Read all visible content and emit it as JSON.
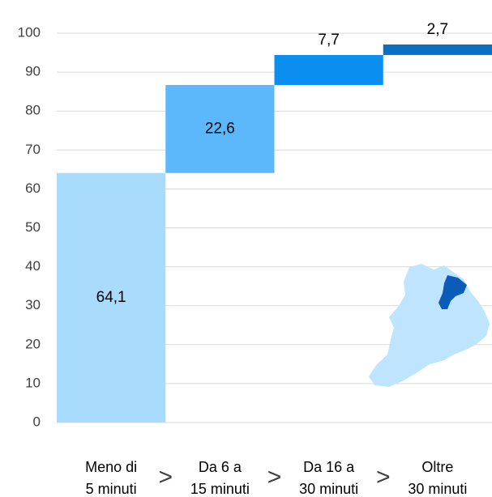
{
  "chart_data": {
    "type": "waterfall",
    "categories": [
      [
        "Meno di",
        "5 minuti"
      ],
      [
        "Da 6 a",
        "15 minuti"
      ],
      [
        "Da 16 a",
        "30 minuti"
      ],
      [
        "Oltre",
        "30 minuti"
      ]
    ],
    "values": [
      64.1,
      22.6,
      7.7,
      2.7
    ],
    "value_labels": [
      "64,1",
      "22,6",
      "7,7",
      "2,7"
    ],
    "colors": [
      "#a9dbfd",
      "#5cb8fb",
      "#0a8ef0",
      "#0c70c2"
    ],
    "separator": ">",
    "ylim": [
      0,
      100
    ],
    "yticks": [
      0,
      10,
      20,
      30,
      40,
      50,
      60,
      70,
      80,
      90,
      100
    ],
    "grid": true
  }
}
